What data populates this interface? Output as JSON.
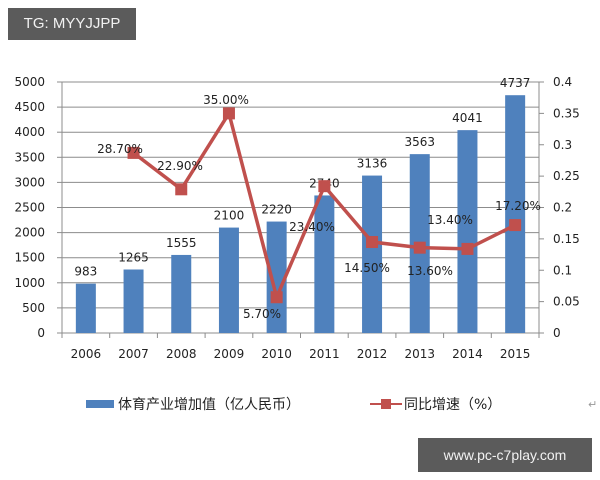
{
  "watermarks": {
    "top": "TG: MYYJJPP",
    "bottom": "www.pc-c7play.com"
  },
  "chart_data": {
    "type": "bar+line",
    "categories": [
      "2006",
      "2007",
      "2008",
      "2009",
      "2010",
      "2011",
      "2012",
      "2013",
      "2014",
      "2015"
    ],
    "series": [
      {
        "name": "体育产业增加值（亿人民币）",
        "type": "bar",
        "axis": "left",
        "color": "#4f81bd",
        "values": [
          983,
          1265,
          1555,
          2100,
          2220,
          2740,
          3136,
          3563,
          4041,
          4737
        ]
      },
      {
        "name": "同比增速（%）",
        "type": "line",
        "axis": "right",
        "color": "#c0504d",
        "values": [
          null,
          0.287,
          0.229,
          0.35,
          0.057,
          0.234,
          0.145,
          0.136,
          0.134,
          0.172
        ],
        "labels": [
          null,
          "28.70%",
          "22.90%",
          "35.00%",
          "5.70%",
          "23.40%",
          "14.50%",
          "13.60%",
          "13.40%",
          "17.20%"
        ]
      }
    ],
    "y_left": {
      "min": 0,
      "max": 5000,
      "step": 500,
      "ticks": [
        "0",
        "500",
        "1000",
        "1500",
        "2000",
        "2500",
        "3000",
        "3500",
        "4000",
        "4500",
        "5000"
      ]
    },
    "y_right": {
      "min": 0,
      "max": 0.4,
      "step": 0.05,
      "ticks": [
        "0",
        "0.05",
        "0.1",
        "0.15",
        "0.2",
        "0.25",
        "0.3",
        "0.35",
        "0.4"
      ]
    },
    "grid": true,
    "legend_position": "bottom",
    "title": "",
    "xlabel": "",
    "ylabel": ""
  }
}
